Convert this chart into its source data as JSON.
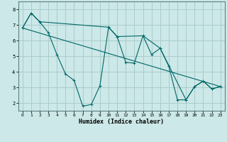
{
  "xlabel": "Humidex (Indice chaleur)",
  "ylabel": "",
  "xlim": [
    -0.5,
    23.5
  ],
  "ylim": [
    1.5,
    8.5
  ],
  "xticks": [
    0,
    1,
    2,
    3,
    4,
    5,
    6,
    7,
    8,
    9,
    10,
    11,
    12,
    13,
    14,
    15,
    16,
    17,
    18,
    19,
    20,
    21,
    22,
    23
  ],
  "yticks": [
    2,
    3,
    4,
    5,
    6,
    7,
    8
  ],
  "bg_color": "#cce8e8",
  "grid_color": "#aacccc",
  "line_color": "#006666",
  "line1_x": [
    0,
    1,
    2,
    3,
    4,
    5,
    6,
    7,
    8,
    9,
    10,
    11,
    12,
    13,
    14,
    15,
    16,
    17,
    18,
    19,
    20,
    21,
    22,
    23
  ],
  "line1_y": [
    6.8,
    7.75,
    7.2,
    6.5,
    5.1,
    3.85,
    3.45,
    1.8,
    1.9,
    3.1,
    6.85,
    6.25,
    4.6,
    4.55,
    6.3,
    5.1,
    5.5,
    4.35,
    2.2,
    2.2,
    3.05,
    3.4,
    2.9,
    3.05
  ],
  "line2_x": [
    0,
    1,
    2,
    10,
    11,
    14,
    16,
    19,
    20,
    21,
    22,
    23
  ],
  "line2_y": [
    6.8,
    7.75,
    7.2,
    6.85,
    6.25,
    6.3,
    5.5,
    2.2,
    3.05,
    3.4,
    2.9,
    3.05
  ],
  "line3_x": [
    0,
    23
  ],
  "line3_y": [
    6.8,
    3.05
  ],
  "marker": "+"
}
